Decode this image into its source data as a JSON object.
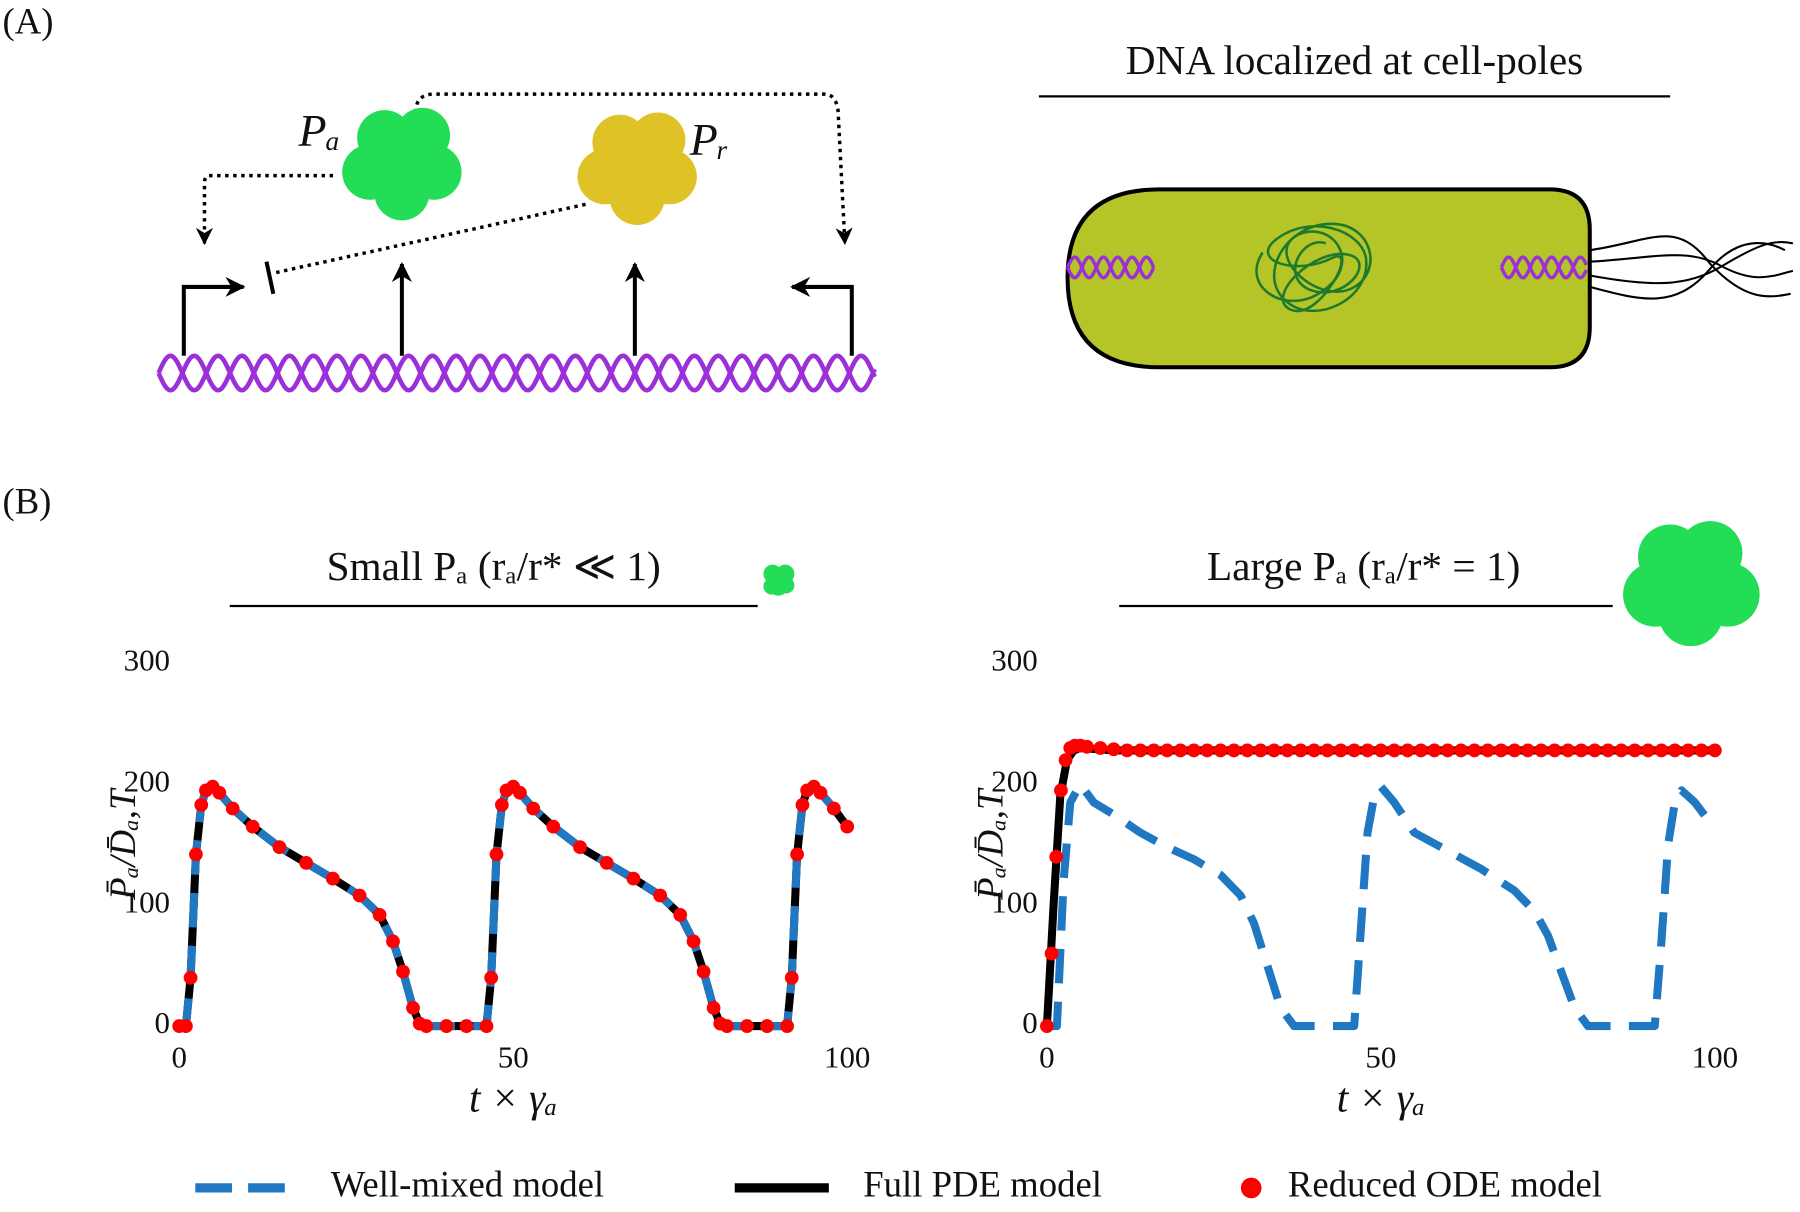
{
  "figure": {
    "panel_a": "(A)",
    "panel_b": "(B)",
    "activator": "Pₐ",
    "repressor": "Pᵣ",
    "cell_title": "DNA localized at cell-poles"
  },
  "chart_data": [
    {
      "type": "line",
      "title": "Small Pₐ (rₐ/r* ≪ 1)",
      "x_label": "t × γₐ",
      "y_label": "P̄ₐ/D̄ₐ,T",
      "xlim": [
        0,
        100
      ],
      "xticks": [
        0,
        50,
        100
      ],
      "ylim": [
        0,
        300
      ],
      "yticks": [
        0,
        100,
        200,
        300
      ],
      "x": [
        0,
        1,
        1.7,
        2.5,
        3.3,
        4,
        5,
        6,
        8,
        11,
        15,
        19,
        23,
        27,
        30,
        32,
        33.5,
        35,
        36,
        37,
        40,
        43,
        46,
        46.7,
        47.5,
        48.3,
        49,
        50,
        51,
        53,
        56,
        60,
        64,
        68,
        72,
        75,
        77,
        78.5,
        80,
        81,
        82,
        85,
        88,
        91,
        91.7,
        92.5,
        93.3,
        94,
        95,
        96,
        98,
        100
      ],
      "series": [
        {
          "name": "Well-mixed model",
          "color": "#1f78c1",
          "style": "dashed",
          "values": [
            0,
            0,
            40,
            142,
            183,
            195,
            198,
            193,
            180,
            165,
            148,
            135,
            122,
            108,
            92,
            70,
            45,
            15,
            2,
            0,
            0,
            0,
            0,
            40,
            142,
            183,
            195,
            198,
            193,
            180,
            165,
            148,
            135,
            122,
            108,
            92,
            70,
            45,
            15,
            2,
            0,
            0,
            0,
            0,
            40,
            142,
            183,
            195,
            198,
            193,
            180,
            165
          ]
        },
        {
          "name": "Full PDE model",
          "color": "#000000",
          "style": "solid",
          "values": [
            0,
            0,
            40,
            142,
            183,
            195,
            198,
            193,
            180,
            165,
            148,
            135,
            122,
            108,
            92,
            70,
            45,
            15,
            2,
            0,
            0,
            0,
            0,
            40,
            142,
            183,
            195,
            198,
            193,
            180,
            165,
            148,
            135,
            122,
            108,
            92,
            70,
            45,
            15,
            2,
            0,
            0,
            0,
            0,
            40,
            142,
            183,
            195,
            198,
            193,
            180,
            165
          ]
        },
        {
          "name": "Reduced ODE model",
          "color": "#ff0000",
          "style": "markers",
          "values": [
            0,
            0,
            40,
            142,
            183,
            195,
            198,
            193,
            180,
            165,
            148,
            135,
            122,
            108,
            92,
            70,
            45,
            15,
            2,
            0,
            0,
            0,
            0,
            40,
            142,
            183,
            195,
            198,
            193,
            180,
            165,
            148,
            135,
            122,
            108,
            92,
            70,
            45,
            15,
            2,
            0,
            0,
            0,
            0,
            40,
            142,
            183,
            195,
            198,
            193,
            180,
            165
          ]
        }
      ]
    },
    {
      "type": "line",
      "title": "Large Pₐ (rₐ/r* = 1)",
      "x_label": "t × γₐ",
      "y_label": "P̄ₐ/D̄ₐ,T",
      "xlim": [
        0,
        100
      ],
      "xticks": [
        0,
        50,
        100
      ],
      "ylim": [
        0,
        300
      ],
      "yticks": [
        0,
        100,
        200,
        300
      ],
      "series": [
        {
          "name": "Well-mixed model",
          "color": "#1f78c1",
          "style": "dashed",
          "x": [
            0,
            1.5,
            2.5,
            3.5,
            5,
            7,
            10,
            14,
            18,
            22,
            26,
            29,
            31,
            33,
            35,
            37,
            40,
            43,
            46,
            47,
            48,
            49,
            50,
            52,
            55,
            60,
            65,
            70,
            73,
            75,
            77,
            79,
            81,
            84,
            88,
            91,
            92,
            93,
            94,
            95,
            97,
            100
          ],
          "values": [
            0,
            0,
            120,
            185,
            200,
            185,
            175,
            160,
            148,
            138,
            125,
            108,
            85,
            50,
            15,
            0,
            0,
            0,
            0,
            80,
            160,
            190,
            198,
            185,
            160,
            145,
            130,
            112,
            95,
            75,
            45,
            15,
            0,
            0,
            0,
            0,
            70,
            150,
            185,
            195,
            185,
            163
          ]
        },
        {
          "name": "Full PDE model",
          "color": "#000000",
          "style": "solid",
          "x": [
            0,
            1,
            2,
            3,
            4,
            5,
            10,
            50,
            100
          ],
          "values": [
            0,
            100,
            190,
            220,
            228,
            230,
            228,
            228,
            228
          ]
        },
        {
          "name": "Reduced ODE model",
          "color": "#ff0000",
          "style": "markers",
          "x": [
            0,
            0.7,
            1.4,
            2.1,
            2.8,
            3.5,
            4.2,
            5,
            6,
            8,
            10,
            12,
            14,
            16,
            18,
            20,
            22,
            24,
            26,
            28,
            30,
            32,
            34,
            36,
            38,
            40,
            42,
            44,
            46,
            48,
            50,
            52,
            54,
            56,
            58,
            60,
            62,
            64,
            66,
            68,
            70,
            72,
            74,
            76,
            78,
            80,
            82,
            84,
            86,
            88,
            90,
            92,
            94,
            96,
            98,
            100
          ],
          "values": [
            0,
            60,
            140,
            195,
            220,
            230,
            232,
            232,
            231,
            230,
            229,
            228,
            228,
            228,
            228,
            228,
            228,
            228,
            228,
            228,
            228,
            228,
            228,
            228,
            228,
            228,
            228,
            228,
            228,
            228,
            228,
            228,
            228,
            228,
            228,
            228,
            228,
            228,
            228,
            228,
            228,
            228,
            228,
            228,
            228,
            228,
            228,
            228,
            228,
            228,
            228,
            228,
            228,
            228,
            228,
            228
          ]
        }
      ]
    }
  ]
}
